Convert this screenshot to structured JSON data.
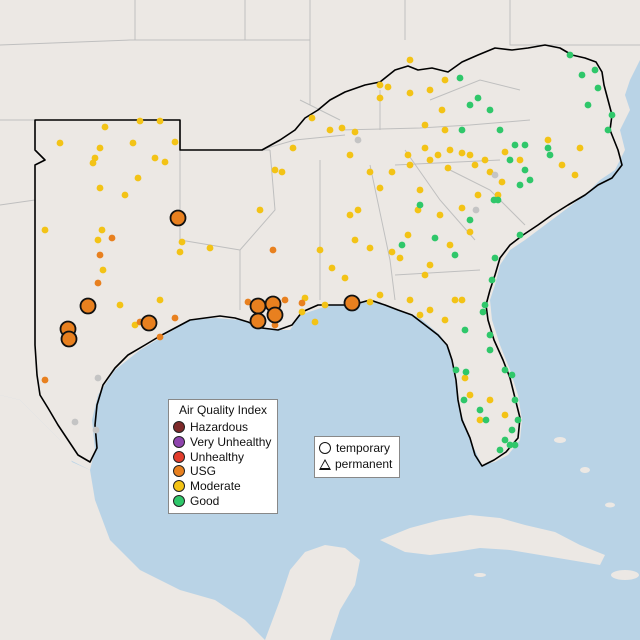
{
  "legend_aqi": {
    "title": "Air Quality Index",
    "items": [
      {
        "label": "Hazardous",
        "color": "#7e2a2a"
      },
      {
        "label": "Very Unhealthy",
        "color": "#8e44ad"
      },
      {
        "label": "Unhealthy",
        "color": "#e23c2c"
      },
      {
        "label": "USG",
        "color": "#e8801f"
      },
      {
        "label": "Moderate",
        "color": "#f3c316"
      },
      {
        "label": "Good",
        "color": "#2fc76a"
      }
    ]
  },
  "legend_type": {
    "items": [
      {
        "label": "temporary",
        "shape": "circle"
      },
      {
        "label": "permanent",
        "shape": "triangle"
      }
    ]
  },
  "colors": {
    "water": "#b9d3e6",
    "land": "#ece8e4",
    "region_outline": "#000000",
    "state_lines": "#bfbfbf",
    "moderate": "#f3c316",
    "good": "#2fc76a",
    "usg": "#e8801f",
    "no_data": "#c4c4c4"
  }
}
